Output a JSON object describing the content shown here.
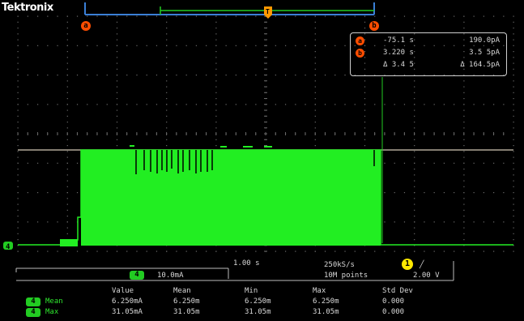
{
  "brand": "Tektronix",
  "cursors": {
    "a_label": "a",
    "b_label": "b",
    "trigger_marker": "T"
  },
  "cursor_readout": {
    "row_a": {
      "label": "a",
      "time": "-75.1 s",
      "value": "190.0pA"
    },
    "row_b": {
      "label": "b",
      "time": "3.220 s",
      "value": "3.5 5pA"
    },
    "row_delta": {
      "time": "Δ 3.4 5",
      "value": "Δ 164.5pA"
    }
  },
  "channel_marker": "4",
  "scale": {
    "channel_badge": "4",
    "channel_scale": "10.0mA",
    "horizontal": "1.00 s",
    "sample_rate": "250kS/s",
    "record_length": "10M points",
    "trigger_badge": "1",
    "trigger_level": "2.00 V",
    "trigger_slope": "╱"
  },
  "measurements": {
    "headers": [
      "Value",
      "Mean",
      "Min",
      "Max",
      "Std Dev"
    ],
    "rows": [
      {
        "badge": "4",
        "name": "Mean",
        "value": "6.250mA",
        "mean": "6.250m",
        "min": "6.250m",
        "max": "6.250m",
        "std": "0.000"
      },
      {
        "badge": "4",
        "name": "Max",
        "value": "31.05mA",
        "mean": "31.05m",
        "min": "31.05m",
        "max": "31.05m",
        "std": "0.000"
      }
    ]
  },
  "colors": {
    "trace": "#22ee22",
    "graticule": "#6a6a6a",
    "cursor": "#ff4d00",
    "trigger": "#ffe800",
    "cursor_line": "#b0a898"
  }
}
